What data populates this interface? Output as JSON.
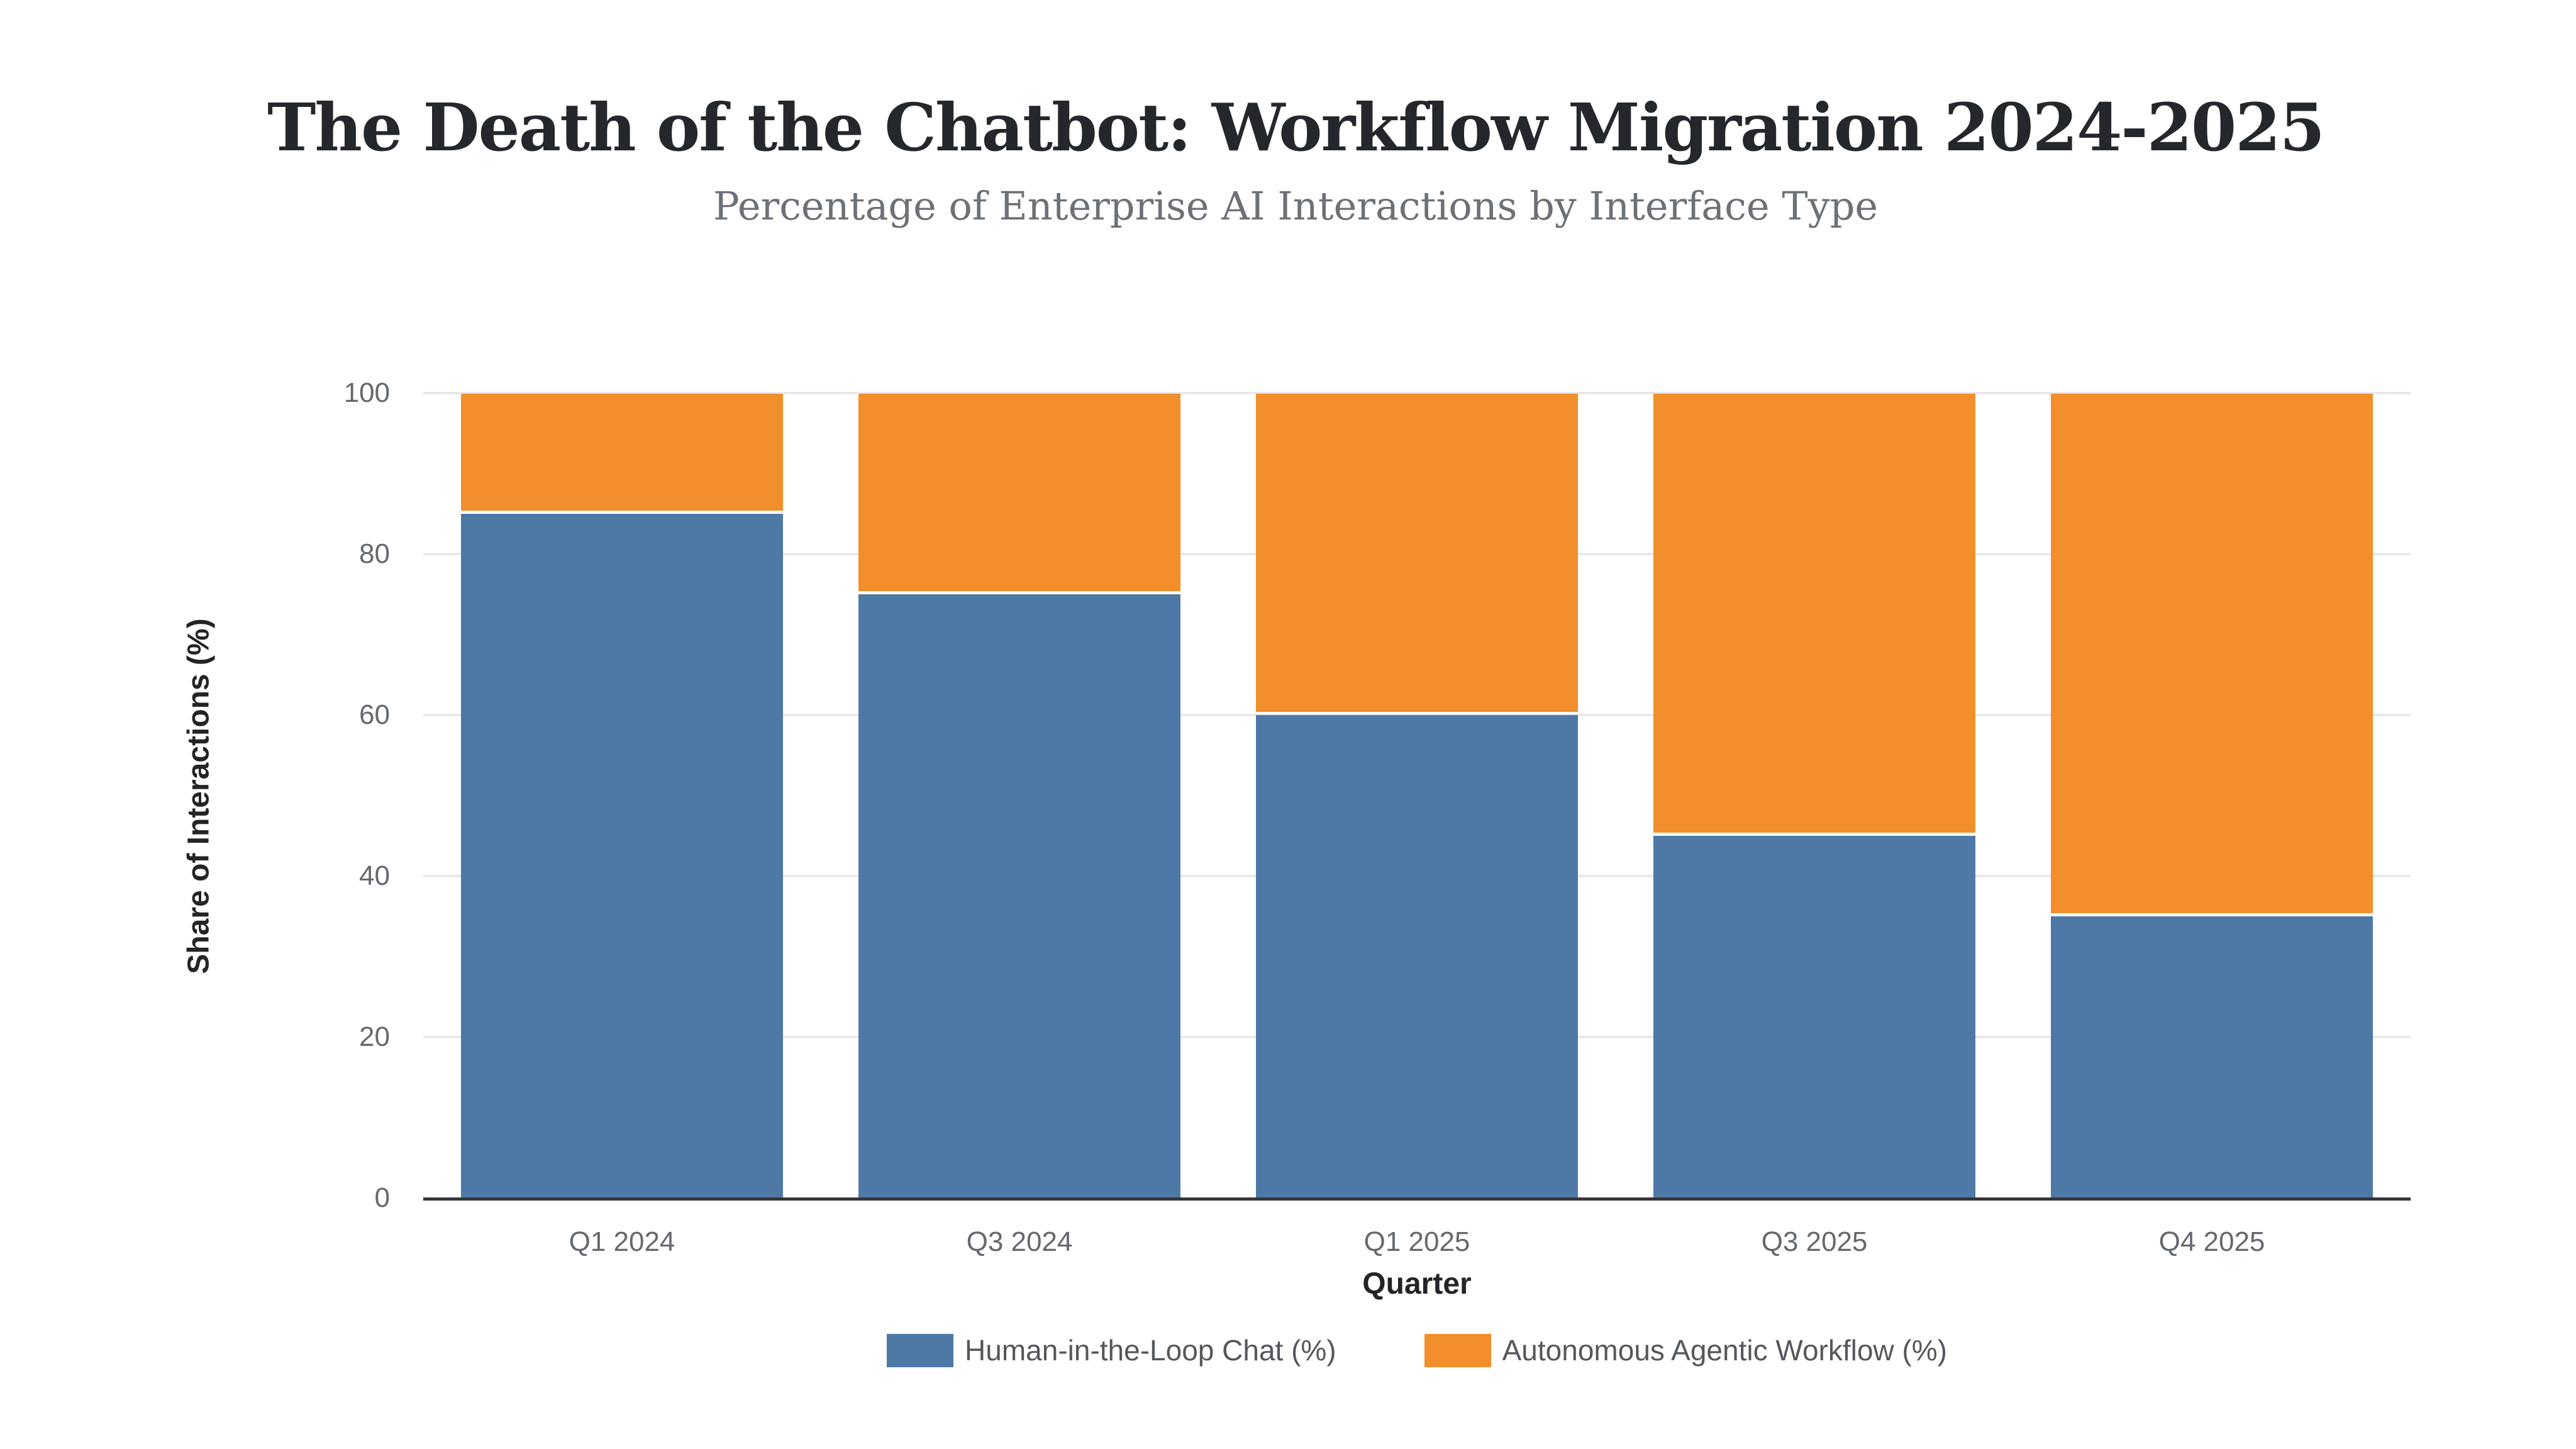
{
  "header": {
    "title": "The Death of the Chatbot: Workflow Migration 2024-2025",
    "subtitle": "Percentage of Enterprise AI Interactions by Interface Type"
  },
  "chart_data": {
    "type": "bar",
    "stacked": true,
    "title": "The Death of the Chatbot: Workflow Migration 2024-2025",
    "subtitle": "Percentage of Enterprise AI Interactions by Interface Type",
    "xlabel": "Quarter",
    "ylabel": "Share of Interactions (%)",
    "categories": [
      "Q1 2024",
      "Q3 2024",
      "Q1 2025",
      "Q3 2025",
      "Q4 2025"
    ],
    "series": [
      {
        "name": "Human-in-the-Loop Chat (%)",
        "color": "#4E79A7",
        "values": [
          85,
          75,
          60,
          45,
          35
        ]
      },
      {
        "name": "Autonomous Agentic Workflow (%)",
        "color": "#F28E2B",
        "values": [
          15,
          25,
          40,
          55,
          65
        ]
      }
    ],
    "yticks": [
      0,
      20,
      40,
      60,
      80,
      100
    ],
    "ylim": [
      0,
      100
    ],
    "grid": true,
    "legend_position": "bottom"
  },
  "colors": {
    "background": "#ffffff",
    "gridline": "#e7e9ed",
    "axis_line": "#32363a",
    "tick_text": "#63696f",
    "axis_title_text": "#222528",
    "title_text": "#24282c",
    "subtitle_text": "#6b7177",
    "legend_text": "#53585e",
    "segment_separator": "#ffffff"
  }
}
